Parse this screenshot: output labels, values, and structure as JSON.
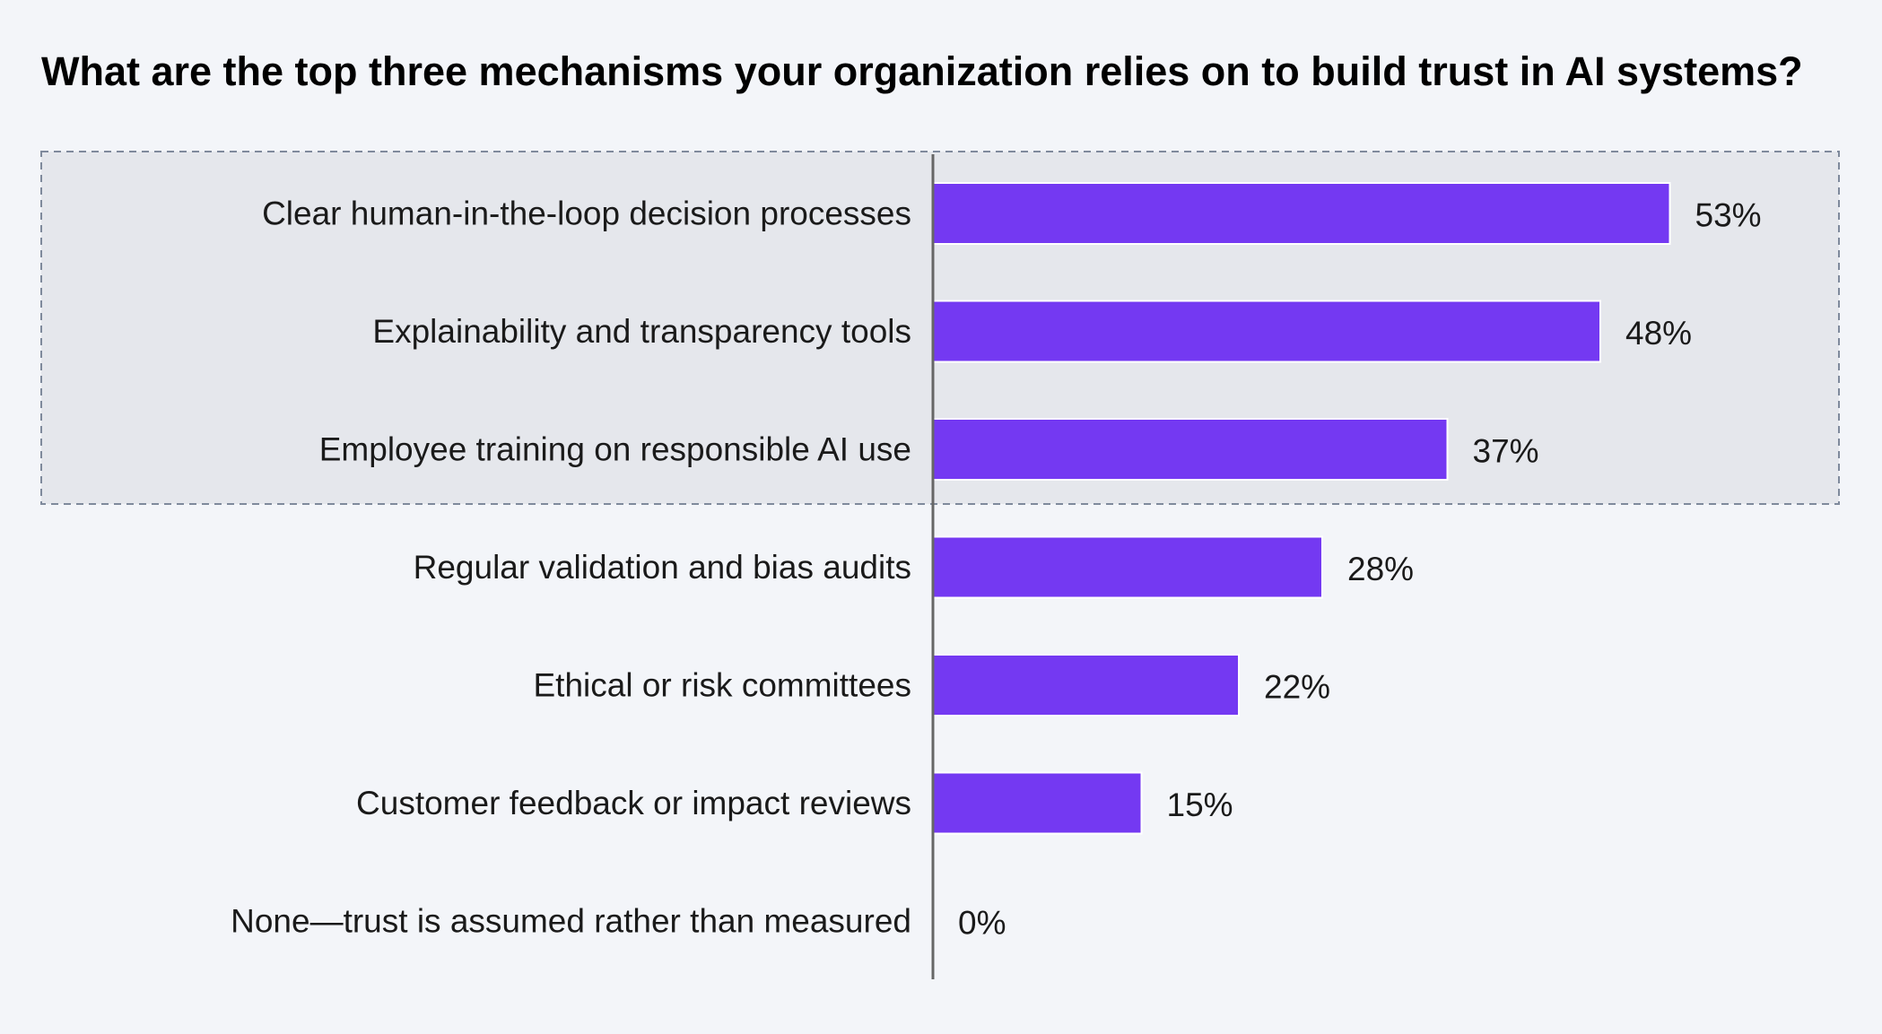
{
  "chart_data": {
    "type": "bar",
    "orientation": "horizontal",
    "title": "What are the top three mechanisms your organization relies on to build trust in AI systems?",
    "categories": [
      "Clear human-in-the-loop decision processes",
      "Explainability and transparency tools",
      "Employee training on responsible AI use",
      "Regular validation and bias audits",
      "Ethical or risk committees",
      "Customer feedback or impact reviews",
      "None—trust is assumed rather than measured"
    ],
    "values": [
      53,
      48,
      37,
      28,
      22,
      15,
      0
    ],
    "value_labels": [
      "53%",
      "48%",
      "37%",
      "28%",
      "22%",
      "15%",
      "0%"
    ],
    "unit": "%",
    "highlighted_top_n": 3,
    "xlim": [
      0,
      60
    ],
    "grid": false,
    "legend": "none",
    "colors": {
      "bar": "#7439f2",
      "bar_outline": "#ffffff",
      "background": "#f3f5f9",
      "highlight_box": "#e5e7ec",
      "highlight_border": "#7f8a9c",
      "axis": "#666666",
      "text": "#1a1a1a"
    }
  }
}
